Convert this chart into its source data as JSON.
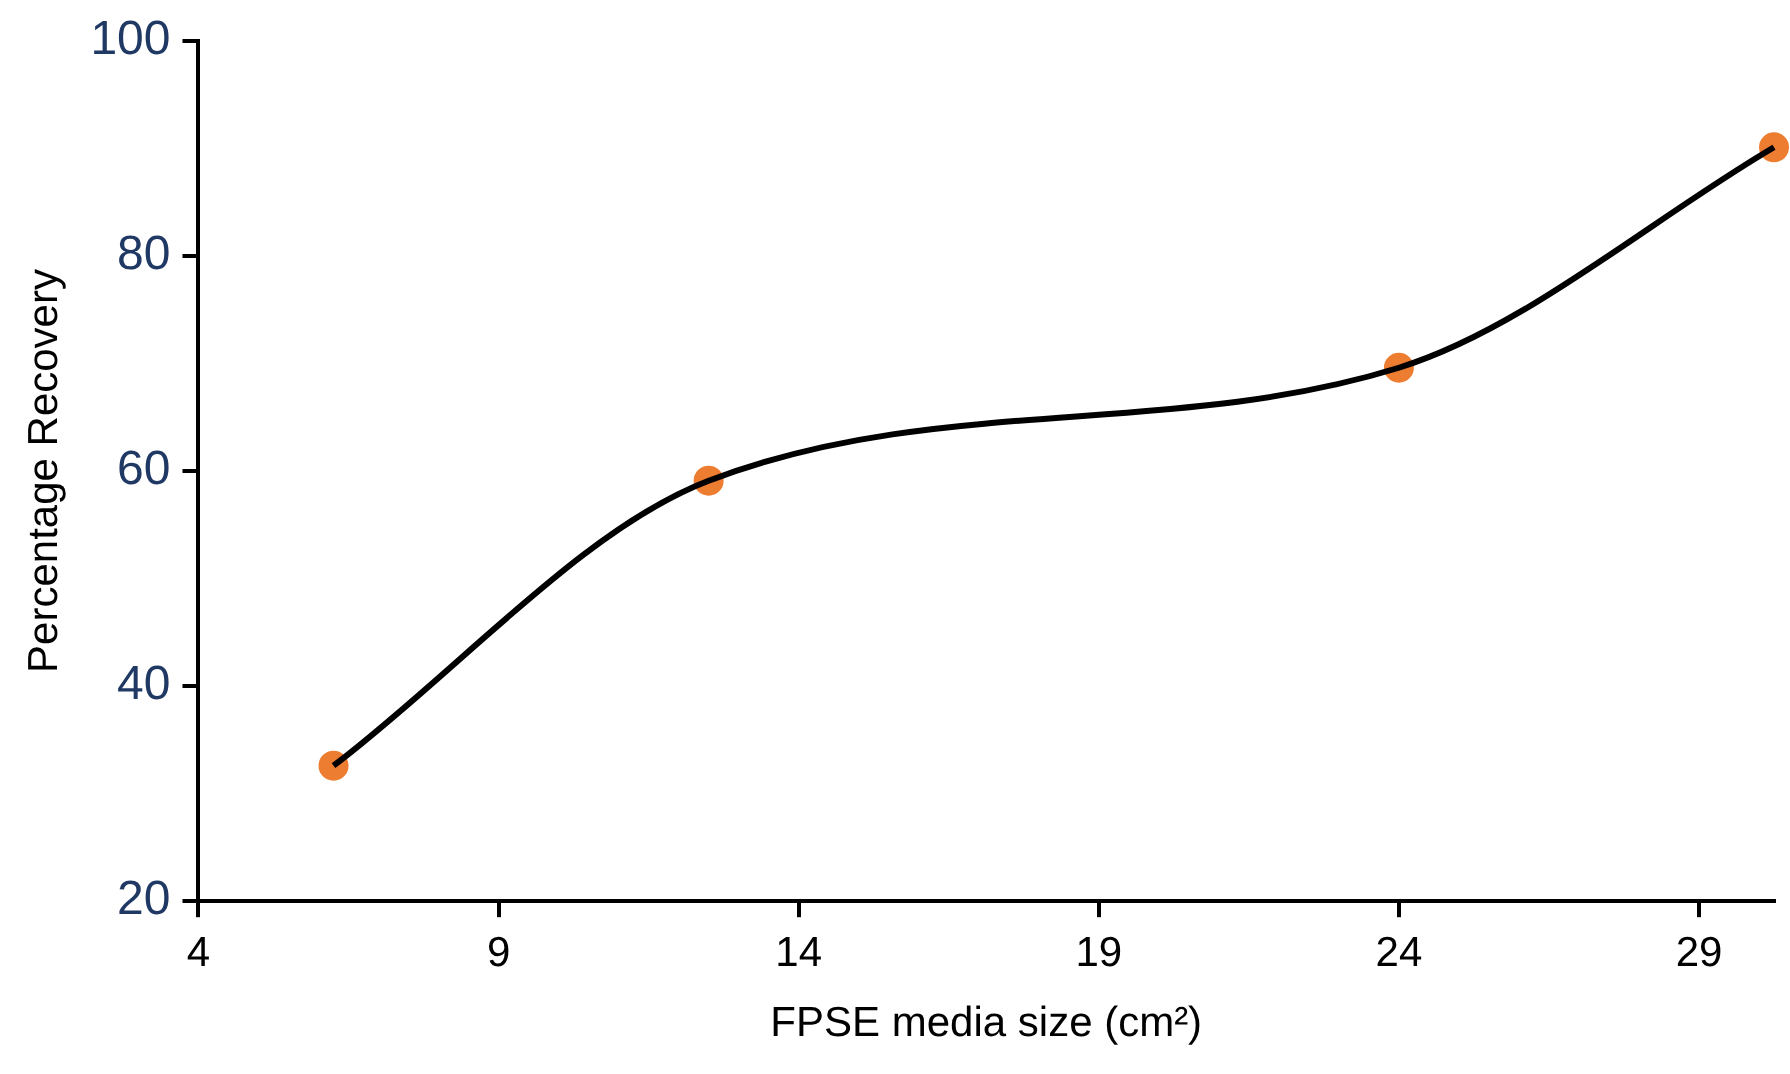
{
  "chart_data": {
    "type": "line",
    "xlabel": "FPSE media size (cm²)",
    "ylabel": "Percentage Recovery",
    "x": [
      6.25,
      12.5,
      24,
      30.25
    ],
    "series": [
      {
        "type": "line",
        "color": "#000000",
        "marker": "none",
        "values": [
          32.6,
          59.1,
          69.6,
          90.1
        ]
      },
      {
        "type": "scatter",
        "color": "#ed7d31",
        "marker": "circle",
        "values": [
          32.6,
          59.1,
          69.6,
          90.1
        ]
      }
    ],
    "xlim": [
      4,
      30.25
    ],
    "xticks": [
      4,
      9,
      14,
      19,
      24,
      29
    ],
    "ylim": [
      20,
      100
    ],
    "yticks": [
      20,
      40,
      60,
      80,
      100
    ],
    "grid": false,
    "legend": false
  }
}
